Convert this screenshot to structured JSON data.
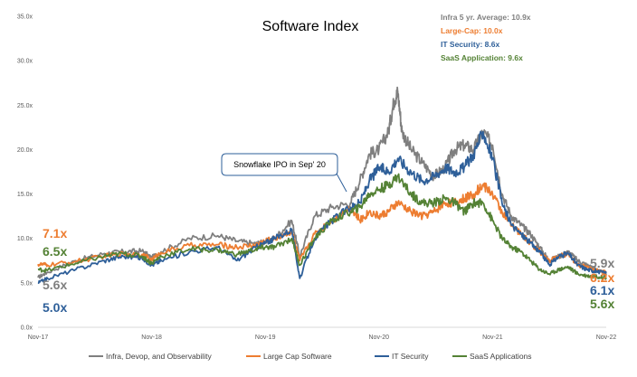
{
  "chart_data": {
    "type": "line",
    "title": "Software Index",
    "xlabel": "",
    "ylabel": "",
    "ylim": [
      0,
      35
    ],
    "y_ticks": [
      "0.0x",
      "5.0x",
      "10.0x",
      "15.0x",
      "20.0x",
      "25.0x",
      "30.0x",
      "35.0x"
    ],
    "x_ticks": [
      "Nov-17",
      "Nov-18",
      "Nov-19",
      "Nov-20",
      "Nov-21",
      "Nov-22"
    ],
    "x_range_years": [
      2017.917,
      2022.917
    ],
    "grid": false,
    "legend_position": "bottom",
    "annotation": "Snowflake IPO in Sep' 20",
    "averages": [
      {
        "text": "Infra 5 yr. Average: 10.9x",
        "color": "#7f7f7f"
      },
      {
        "text": "Large-Cap: 10.0x",
        "color": "#ed7d31"
      },
      {
        "text": "IT Security: 8.6x",
        "color": "#2e5f99"
      },
      {
        "text": "SaaS Application: 9.6x",
        "color": "#548235"
      }
    ],
    "series": [
      {
        "name": "Infra, Devop, and Observability",
        "color": "#7f7f7f",
        "start_label": "5.6x",
        "end_label": "5.9x",
        "points": [
          [
            2017.917,
            5.6
          ],
          [
            2018.0,
            6.2
          ],
          [
            2018.25,
            7.5
          ],
          [
            2018.5,
            8.3
          ],
          [
            2018.667,
            8.5
          ],
          [
            2018.833,
            8.6
          ],
          [
            2018.917,
            7.8
          ],
          [
            2019.0,
            8.5
          ],
          [
            2019.25,
            10.0
          ],
          [
            2019.5,
            10.3
          ],
          [
            2019.667,
            9.7
          ],
          [
            2019.833,
            9.4
          ],
          [
            2019.917,
            9.6
          ],
          [
            2020.0,
            10.0
          ],
          [
            2020.15,
            12.0
          ],
          [
            2020.22,
            8.0
          ],
          [
            2020.35,
            12.5
          ],
          [
            2020.5,
            13.5
          ],
          [
            2020.667,
            14.0
          ],
          [
            2020.75,
            16.5
          ],
          [
            2020.833,
            19.5
          ],
          [
            2020.917,
            20.0
          ],
          [
            2021.0,
            22.0
          ],
          [
            2021.05,
            25.5
          ],
          [
            2021.083,
            26.5
          ],
          [
            2021.12,
            22.0
          ],
          [
            2021.2,
            20.0
          ],
          [
            2021.3,
            18.5
          ],
          [
            2021.4,
            17.0
          ],
          [
            2021.5,
            18.0
          ],
          [
            2021.583,
            20.0
          ],
          [
            2021.667,
            20.5
          ],
          [
            2021.75,
            20.0
          ],
          [
            2021.833,
            22.0
          ],
          [
            2021.917,
            20.5
          ],
          [
            2022.0,
            15.0
          ],
          [
            2022.083,
            12.5
          ],
          [
            2022.167,
            11.5
          ],
          [
            2022.25,
            10.5
          ],
          [
            2022.333,
            9.0
          ],
          [
            2022.417,
            7.5
          ],
          [
            2022.5,
            8.0
          ],
          [
            2022.583,
            8.5
          ],
          [
            2022.667,
            7.5
          ],
          [
            2022.75,
            7.0
          ],
          [
            2022.833,
            6.5
          ],
          [
            2022.917,
            5.9
          ]
        ]
      },
      {
        "name": "Large Cap Software",
        "color": "#ed7d31",
        "start_label": "7.1x",
        "end_label": "6.2x",
        "points": [
          [
            2017.917,
            7.1
          ],
          [
            2018.0,
            7.0
          ],
          [
            2018.25,
            7.4
          ],
          [
            2018.5,
            8.0
          ],
          [
            2018.667,
            8.3
          ],
          [
            2018.833,
            8.2
          ],
          [
            2018.917,
            7.6
          ],
          [
            2019.0,
            8.4
          ],
          [
            2019.25,
            9.2
          ],
          [
            2019.5,
            9.3
          ],
          [
            2019.667,
            9.0
          ],
          [
            2019.833,
            9.3
          ],
          [
            2019.917,
            9.7
          ],
          [
            2020.0,
            10.0
          ],
          [
            2020.15,
            10.8
          ],
          [
            2020.22,
            7.5
          ],
          [
            2020.35,
            10.5
          ],
          [
            2020.5,
            12.0
          ],
          [
            2020.667,
            13.5
          ],
          [
            2020.75,
            12.0
          ],
          [
            2020.833,
            13.0
          ],
          [
            2020.917,
            12.5
          ],
          [
            2021.0,
            13.0
          ],
          [
            2021.083,
            14.0
          ],
          [
            2021.2,
            13.0
          ],
          [
            2021.3,
            12.5
          ],
          [
            2021.4,
            13.0
          ],
          [
            2021.5,
            14.0
          ],
          [
            2021.583,
            14.0
          ],
          [
            2021.667,
            14.5
          ],
          [
            2021.75,
            15.0
          ],
          [
            2021.833,
            16.0
          ],
          [
            2021.917,
            15.0
          ],
          [
            2022.0,
            13.0
          ],
          [
            2022.083,
            11.5
          ],
          [
            2022.167,
            10.5
          ],
          [
            2022.25,
            9.5
          ],
          [
            2022.333,
            8.5
          ],
          [
            2022.417,
            7.5
          ],
          [
            2022.5,
            8.0
          ],
          [
            2022.583,
            8.2
          ],
          [
            2022.667,
            7.0
          ],
          [
            2022.75,
            6.8
          ],
          [
            2022.833,
            6.4
          ],
          [
            2022.917,
            6.2
          ]
        ]
      },
      {
        "name": "IT Security",
        "color": "#2e5f99",
        "start_label": "5.0x",
        "end_label": "6.1x",
        "points": [
          [
            2017.917,
            5.0
          ],
          [
            2018.0,
            5.5
          ],
          [
            2018.25,
            6.5
          ],
          [
            2018.5,
            7.5
          ],
          [
            2018.667,
            8.0
          ],
          [
            2018.833,
            7.8
          ],
          [
            2018.917,
            7.0
          ],
          [
            2019.0,
            7.5
          ],
          [
            2019.25,
            8.5
          ],
          [
            2019.5,
            9.0
          ],
          [
            2019.667,
            7.5
          ],
          [
            2019.833,
            9.0
          ],
          [
            2019.917,
            9.5
          ],
          [
            2020.0,
            10.0
          ],
          [
            2020.15,
            11.0
          ],
          [
            2020.22,
            5.5
          ],
          [
            2020.35,
            10.0
          ],
          [
            2020.5,
            12.0
          ],
          [
            2020.667,
            13.5
          ],
          [
            2020.75,
            14.0
          ],
          [
            2020.833,
            16.5
          ],
          [
            2020.917,
            18.0
          ],
          [
            2021.0,
            17.5
          ],
          [
            2021.083,
            19.0
          ],
          [
            2021.2,
            17.5
          ],
          [
            2021.3,
            16.5
          ],
          [
            2021.4,
            17.0
          ],
          [
            2021.5,
            18.0
          ],
          [
            2021.583,
            17.5
          ],
          [
            2021.667,
            18.0
          ],
          [
            2021.75,
            19.5
          ],
          [
            2021.833,
            22.0
          ],
          [
            2021.917,
            19.0
          ],
          [
            2022.0,
            14.0
          ],
          [
            2022.083,
            11.5
          ],
          [
            2022.167,
            10.5
          ],
          [
            2022.25,
            9.5
          ],
          [
            2022.333,
            8.5
          ],
          [
            2022.417,
            7.0
          ],
          [
            2022.5,
            8.0
          ],
          [
            2022.583,
            8.3
          ],
          [
            2022.667,
            7.0
          ],
          [
            2022.75,
            6.5
          ],
          [
            2022.833,
            6.3
          ],
          [
            2022.917,
            6.1
          ]
        ]
      },
      {
        "name": "SaaS Applications",
        "color": "#548235",
        "start_label": "6.5x",
        "end_label": "5.6x",
        "points": [
          [
            2017.917,
            6.5
          ],
          [
            2018.0,
            6.4
          ],
          [
            2018.25,
            7.2
          ],
          [
            2018.5,
            8.0
          ],
          [
            2018.667,
            8.3
          ],
          [
            2018.833,
            8.0
          ],
          [
            2018.917,
            7.2
          ],
          [
            2019.0,
            8.0
          ],
          [
            2019.25,
            8.8
          ],
          [
            2019.5,
            8.7
          ],
          [
            2019.667,
            8.2
          ],
          [
            2019.833,
            8.8
          ],
          [
            2019.917,
            9.0
          ],
          [
            2020.0,
            9.0
          ],
          [
            2020.15,
            10.0
          ],
          [
            2020.22,
            7.0
          ],
          [
            2020.35,
            10.0
          ],
          [
            2020.5,
            12.0
          ],
          [
            2020.667,
            13.0
          ],
          [
            2020.75,
            13.5
          ],
          [
            2020.833,
            15.0
          ],
          [
            2020.917,
            15.5
          ],
          [
            2021.0,
            16.0
          ],
          [
            2021.083,
            17.0
          ],
          [
            2021.2,
            15.0
          ],
          [
            2021.3,
            14.0
          ],
          [
            2021.4,
            14.0
          ],
          [
            2021.5,
            14.5
          ],
          [
            2021.583,
            14.0
          ],
          [
            2021.667,
            13.0
          ],
          [
            2021.75,
            14.0
          ],
          [
            2021.833,
            14.0
          ],
          [
            2021.917,
            12.0
          ],
          [
            2022.0,
            10.0
          ],
          [
            2022.083,
            9.0
          ],
          [
            2022.167,
            8.5
          ],
          [
            2022.25,
            7.5
          ],
          [
            2022.333,
            6.5
          ],
          [
            2022.417,
            6.0
          ],
          [
            2022.5,
            6.5
          ],
          [
            2022.583,
            6.8
          ],
          [
            2022.667,
            6.0
          ],
          [
            2022.75,
            5.8
          ],
          [
            2022.833,
            5.7
          ],
          [
            2022.917,
            5.6
          ]
        ]
      }
    ]
  }
}
